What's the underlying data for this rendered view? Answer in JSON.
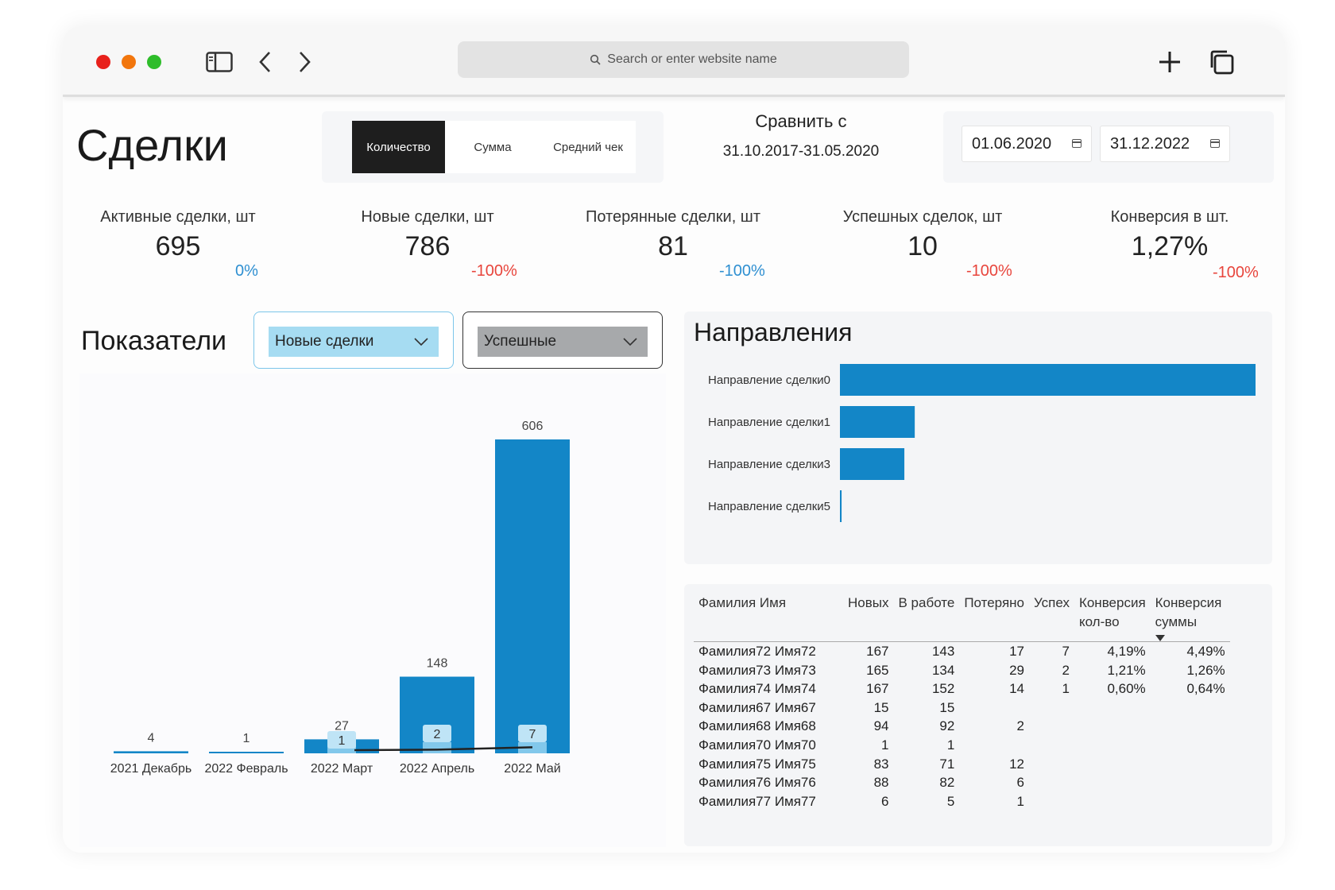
{
  "browser": {
    "address_placeholder": "Search or enter website name"
  },
  "header": {
    "title": "Сделки",
    "tabs": [
      {
        "label": "Количество",
        "active": true
      },
      {
        "label": "Сумма",
        "active": false
      },
      {
        "label": "Средний чек",
        "active": false
      }
    ],
    "compare_label": "Сравнить с",
    "compare_range": "31.10.2017-31.05.2020",
    "date_from": "01.06.2020",
    "date_to": "31.12.2022"
  },
  "kpis": [
    {
      "label": "Активные сделки, шт",
      "value": "695",
      "delta": "0%",
      "delta_color": "#2e8fd1"
    },
    {
      "label": "Новые сделки, шт",
      "value": "786",
      "delta": "-100%",
      "delta_color": "#e8453c"
    },
    {
      "label": "Потерянные сделки, шт",
      "value": "81",
      "delta": "-100%",
      "delta_color": "#2e8fd1"
    },
    {
      "label": "Успешных сделок, шт",
      "value": "10",
      "delta": "-100%",
      "delta_color": "#e8453c"
    },
    {
      "label": "Конверсия в шт.",
      "value": "1,27%",
      "delta": "-100%",
      "delta_color": "#e8453c"
    }
  ],
  "indicators": {
    "title": "Показатели",
    "dropdown_1": {
      "value": "Новые сделки",
      "bg": "#a6dcf2"
    },
    "dropdown_2": {
      "value": "Успешные",
      "bg": "#a7a9ab"
    }
  },
  "chart_data": [
    {
      "type": "bar",
      "categories": [
        "2021 Декабрь",
        "2022 Февраль",
        "2022 Март",
        "2022 Апрель",
        "2022 Май"
      ],
      "series": [
        {
          "name": "Новые сделки",
          "values": [
            4,
            1,
            27,
            148,
            606
          ],
          "color": "#1386c7"
        },
        {
          "name": "Успешные",
          "values": [
            null,
            null,
            1,
            2,
            7
          ],
          "color": "#8fcfee"
        }
      ]
    },
    {
      "type": "bar",
      "orientation": "horizontal",
      "title": "Направления",
      "categories": [
        "Направление сделки0",
        "Направление сделки1",
        "Направление сделки3",
        "Направление сделки5"
      ],
      "values": [
        100,
        18,
        15.5,
        0.4
      ],
      "color": "#1386c7"
    }
  ],
  "directions": {
    "title": "Направления"
  },
  "table": {
    "columns": [
      "Фамилия Имя",
      "Новых",
      "В работе",
      "Потеряно",
      "Успех",
      "Конверсия кол-во",
      "Конверсия суммы"
    ],
    "rows": [
      [
        "Фамилия72 Имя72",
        "167",
        "143",
        "17",
        "7",
        "4,19%",
        "4,49%"
      ],
      [
        "Фамилия73 Имя73",
        "165",
        "134",
        "29",
        "2",
        "1,21%",
        "1,26%"
      ],
      [
        "Фамилия74 Имя74",
        "167",
        "152",
        "14",
        "1",
        "0,60%",
        "0,64%"
      ],
      [
        "Фамилия67 Имя67",
        "15",
        "15",
        "",
        "",
        "",
        ""
      ],
      [
        "Фамилия68 Имя68",
        "94",
        "92",
        "2",
        "",
        "",
        ""
      ],
      [
        "Фамилия70 Имя70",
        "1",
        "1",
        "",
        "",
        "",
        ""
      ],
      [
        "Фамилия75 Имя75",
        "83",
        "71",
        "12",
        "",
        "",
        ""
      ],
      [
        "Фамилия76 Имя76",
        "88",
        "82",
        "6",
        "",
        "",
        ""
      ],
      [
        "Фамилия77 Имя77",
        "6",
        "5",
        "1",
        "",
        "",
        ""
      ]
    ]
  }
}
